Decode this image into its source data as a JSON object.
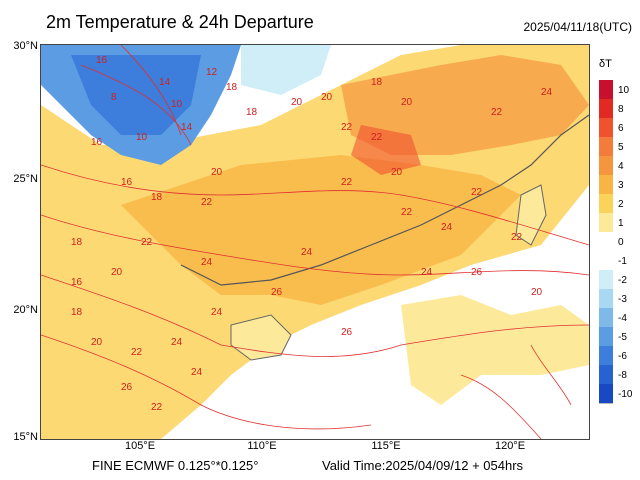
{
  "title": "2m Temperature & 24h Departure",
  "datetime": "2025/04/11/18(UTC)",
  "model": "FINE ECMWF 0.125°*0.125°",
  "valid_time": "Valid Time:2025/04/09/12 + 054hrs",
  "colorbar": {
    "title": "δT",
    "ticks": [
      "10",
      "8",
      "6",
      "5",
      "4",
      "3",
      "2",
      "1",
      "0",
      "-1",
      "-2",
      "-3",
      "-4",
      "-5",
      "-6",
      "-8",
      "-10"
    ],
    "colors": [
      "#c8102e",
      "#e22a22",
      "#f0512e",
      "#f37c3b",
      "#f5963f",
      "#f8b545",
      "#fbd25a",
      "#fde99a",
      "#ffffff",
      "#ffffff",
      "#cfeef7",
      "#a9d8f2",
      "#7eb9ea",
      "#5b9ce3",
      "#3d7ddb",
      "#2762d0",
      "#1848c2"
    ]
  },
  "axes": {
    "lat_labels": [
      "30°N",
      "25°N",
      "20°N",
      "15°N"
    ],
    "lon_labels": [
      "105°E",
      "110°E",
      "115°E",
      "120°E"
    ]
  },
  "contour_labels": [
    "16",
    "14",
    "12",
    "10",
    "8",
    "18",
    "16",
    "10",
    "14",
    "18",
    "16",
    "18",
    "20",
    "22",
    "22",
    "18",
    "20",
    "22",
    "22",
    "20",
    "22",
    "24",
    "22",
    "24",
    "22",
    "20",
    "16",
    "18",
    "20",
    "22",
    "24",
    "26",
    "24",
    "24",
    "26",
    "26",
    "24",
    "22",
    "24",
    "26",
    "20",
    "18",
    "20",
    "22",
    "24",
    "22",
    "20"
  ]
}
